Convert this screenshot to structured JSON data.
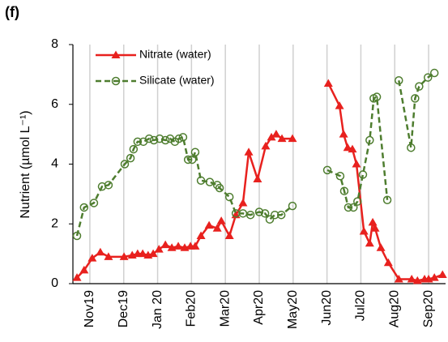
{
  "panel_label": "(f)",
  "chart_data": {
    "type": "line",
    "ylabel": "Nutrient (µmol L⁻¹)",
    "xlim": [
      0,
      11
    ],
    "ylim": [
      0,
      8
    ],
    "yticks": [
      0,
      2,
      4,
      6,
      8
    ],
    "xticks": [
      {
        "value": 0.5,
        "label": "Nov19"
      },
      {
        "value": 1.5,
        "label": "Dec19"
      },
      {
        "value": 2.5,
        "label": "Jan 20"
      },
      {
        "value": 3.5,
        "label": "Feb20"
      },
      {
        "value": 4.5,
        "label": "Mar20"
      },
      {
        "value": 5.5,
        "label": "Apr20"
      },
      {
        "value": 6.5,
        "label": "May20"
      },
      {
        "value": 7.5,
        "label": "Jun20"
      },
      {
        "value": 8.5,
        "label": "Jul20"
      },
      {
        "value": 9.5,
        "label": "Aug20"
      },
      {
        "value": 10.5,
        "label": "Sep20"
      }
    ],
    "grid": true,
    "legend": "upper left",
    "series": [
      {
        "name": "Nitrate (water)",
        "color": "#e8211e",
        "marker": "triangle",
        "dashed": false,
        "x": [
          0.12,
          0.33,
          0.57,
          0.81,
          1.05,
          1.51,
          1.75,
          1.91,
          2.06,
          2.22,
          2.37,
          2.54,
          2.73,
          2.92,
          3.11,
          3.3,
          3.47,
          3.61,
          3.78,
          4.02,
          4.26,
          4.38,
          4.62,
          4.81,
          5.02,
          5.19,
          5.45,
          5.69,
          5.86,
          6.0,
          6.17,
          6.48,
          null,
          7.54,
          7.87,
          7.99,
          8.11,
          8.25,
          8.37,
          8.59,
          8.76,
          8.85,
          8.92,
          9.09,
          9.31,
          9.62,
          10.0,
          10.17,
          10.38,
          10.5,
          10.67,
          10.91
        ],
        "values": [
          0.2,
          0.45,
          0.85,
          1.05,
          0.9,
          0.9,
          0.95,
          1.0,
          1.0,
          0.95,
          1.0,
          1.15,
          1.3,
          1.2,
          1.25,
          1.2,
          1.25,
          1.25,
          1.6,
          1.95,
          1.85,
          2.1,
          1.6,
          2.3,
          2.7,
          4.4,
          3.5,
          4.6,
          4.9,
          5.0,
          4.85,
          4.85,
          null,
          6.7,
          5.95,
          5.0,
          4.55,
          4.5,
          4.0,
          1.75,
          1.35,
          2.05,
          1.85,
          1.2,
          0.7,
          0.15,
          0.15,
          0.1,
          0.15,
          0.15,
          0.2,
          0.3
        ]
      },
      {
        "name": "Silicate (water)",
        "color": "#4e7d2f",
        "marker": "circle",
        "dashed": true,
        "x": [
          0.12,
          0.33,
          0.62,
          0.86,
          1.05,
          1.53,
          1.7,
          1.79,
          1.91,
          2.08,
          2.25,
          2.39,
          2.56,
          2.73,
          2.87,
          3.01,
          3.13,
          3.25,
          3.4,
          3.52,
          3.61,
          3.78,
          4.04,
          4.26,
          4.33,
          4.62,
          4.81,
          5.02,
          5.24,
          5.5,
          5.67,
          5.81,
          5.96,
          6.15,
          6.48,
          null,
          7.51,
          7.89,
          8.01,
          8.13,
          8.28,
          8.4,
          8.56,
          8.76,
          8.88,
          8.97,
          9.28,
          null,
          9.62,
          9.98,
          10.1,
          10.22,
          10.48,
          10.67
        ],
        "values": [
          1.6,
          2.55,
          2.7,
          3.25,
          3.3,
          4.0,
          4.2,
          4.5,
          4.75,
          4.75,
          4.85,
          4.8,
          4.85,
          4.8,
          4.85,
          4.75,
          4.85,
          4.9,
          4.15,
          4.15,
          4.4,
          3.45,
          3.4,
          3.3,
          3.2,
          2.9,
          2.35,
          2.35,
          2.3,
          2.4,
          2.35,
          2.15,
          2.3,
          2.3,
          2.6,
          null,
          3.8,
          3.6,
          3.1,
          2.55,
          2.55,
          2.75,
          3.65,
          4.8,
          6.2,
          6.25,
          2.8,
          null,
          6.8,
          4.55,
          6.2,
          6.6,
          6.9,
          7.05
        ]
      }
    ]
  }
}
